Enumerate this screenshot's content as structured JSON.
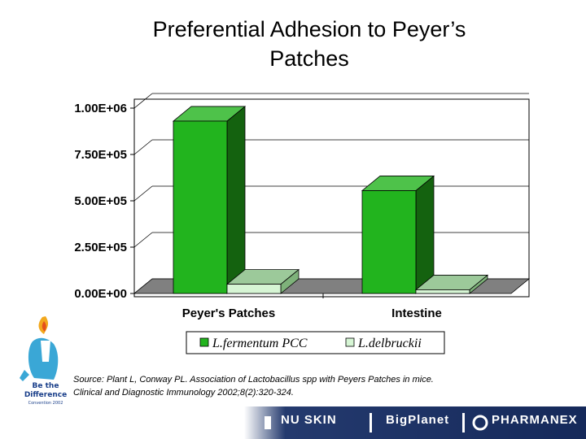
{
  "title_line1": "Preferential Adhesion to Peyer’s",
  "title_line2": "Patches",
  "chart_data": {
    "type": "bar",
    "categories": [
      "Peyer's Patches",
      "Intestine"
    ],
    "series": [
      {
        "name": "L.fermentum PCC",
        "values": [
          930000,
          555000
        ]
      },
      {
        "name": "L.delbruckii",
        "values": [
          50000,
          20000
        ]
      }
    ],
    "yticks": [
      "0.00E+00",
      "2.50E+05",
      "5.00E+05",
      "7.50E+05",
      "1.00E+06"
    ],
    "ylim": [
      0,
      1000000
    ],
    "legend_position": "bottom",
    "colors": {
      "series1_front": "#22b41e",
      "series1_side": "#14620f",
      "series1_top": "#4ec24a",
      "series2_front": "#d6f5d4",
      "series2_side": "#7eb27a",
      "series2_top": "#9cc99a",
      "floor": "#808080"
    }
  },
  "source_line1": "Source: Plant L, Conway PL. Association of Lactobacillus spp with Peyers Patches in mice.",
  "source_line2": "Clinical and Diagnostic Immunology 2002;8(2):320-324.",
  "mascot": {
    "line1": "Be the",
    "line2": "Difference",
    "line3": "Convention 2002"
  },
  "footer": {
    "brand1": "NU SKIN",
    "brand2": "BigPlanet",
    "brand3": "PHARMANEX"
  }
}
